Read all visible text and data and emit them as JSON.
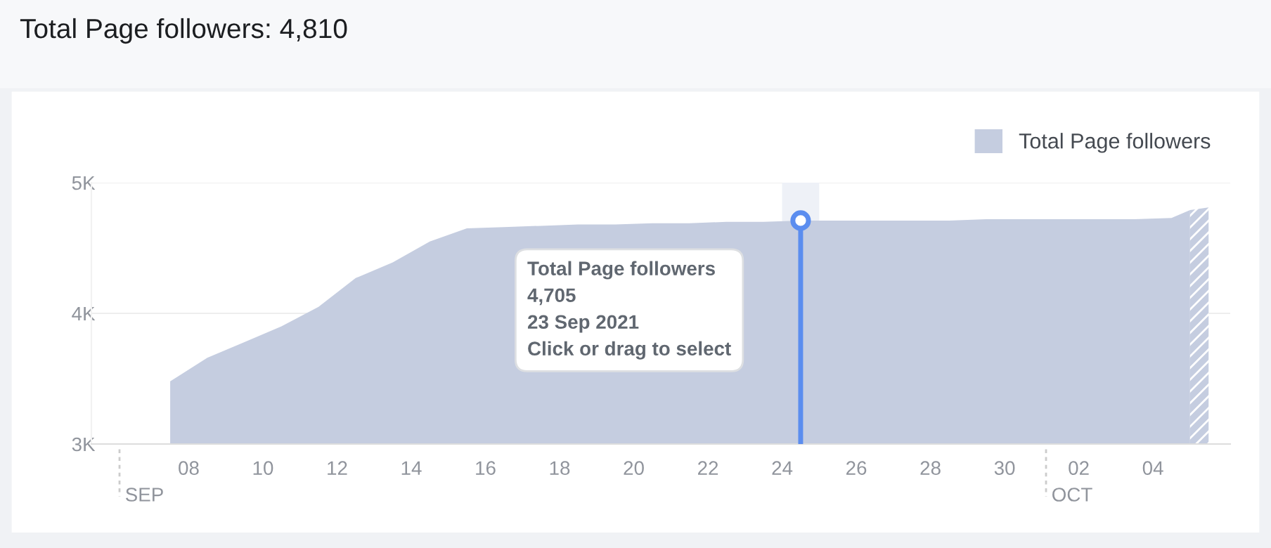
{
  "chart_data": {
    "type": "area",
    "title": "Total Page followers: 4,810",
    "x": [
      "2021-09-07T12:00",
      "2021-09-08T12:00",
      "2021-09-09T12:00",
      "2021-09-10T12:00",
      "2021-09-11T12:00",
      "2021-09-12T12:00",
      "2021-09-13T12:00",
      "2021-09-14T12:00",
      "2021-09-15T12:00",
      "2021-09-16T12:00",
      "2021-09-17T12:00",
      "2021-09-18T12:00",
      "2021-09-19T12:00",
      "2021-09-20T12:00",
      "2021-09-21T12:00",
      "2021-09-22T12:00",
      "2021-09-23T12:00",
      "2021-09-24T12:00",
      "2021-09-25T12:00",
      "2021-09-26T12:00",
      "2021-09-27T12:00",
      "2021-09-28T12:00",
      "2021-09-29T12:00",
      "2021-09-30T12:00",
      "2021-10-01T12:00",
      "2021-10-02T12:00",
      "2021-10-03T12:00",
      "2021-10-04T12:00",
      "2021-10-05T00:00"
    ],
    "series": [
      {
        "name": "Total Page followers",
        "color": "#c5cde0",
        "values": [
          3480,
          3660,
          3780,
          3900,
          4050,
          4270,
          4390,
          4550,
          4650,
          4660,
          4670,
          4680,
          4680,
          4690,
          4690,
          4700,
          4700,
          4710,
          4710,
          4710,
          4710,
          4710,
          4720,
          4720,
          4720,
          4720,
          4720,
          4730,
          4790
        ]
      },
      {
        "color": "#c5cde0",
        "x": [
          "2021-10-05T00:00",
          "2021-10-05T12:00"
        ],
        "values": [
          4790,
          4810
        ]
      }
    ],
    "xlim": [
      "2021-09-05T09:00",
      "2021-10-06T02:00"
    ],
    "xticks": [
      {
        "value": "2021-09-08",
        "label": "08"
      },
      {
        "value": "2021-09-10",
        "label": "10"
      },
      {
        "value": "2021-09-12",
        "label": "12"
      },
      {
        "value": "2021-09-14",
        "label": "14"
      },
      {
        "value": "2021-09-16",
        "label": "16"
      },
      {
        "value": "2021-09-18",
        "label": "18"
      },
      {
        "value": "2021-09-20",
        "label": "20"
      },
      {
        "value": "2021-09-22",
        "label": "22"
      },
      {
        "value": "2021-09-24",
        "label": "24"
      },
      {
        "value": "2021-09-26",
        "label": "26"
      },
      {
        "value": "2021-09-28",
        "label": "28"
      },
      {
        "value": "2021-09-30",
        "label": "30"
      },
      {
        "value": "2021-10-02",
        "label": "02"
      },
      {
        "value": "2021-10-04",
        "label": "04"
      }
    ],
    "ylim": [
      3000,
      5000
    ],
    "yticks": [
      {
        "value": 3000,
        "label": "3K"
      },
      {
        "value": 4000,
        "label": "4K"
      },
      {
        "value": 5000,
        "label": "5K"
      }
    ],
    "grid": "y",
    "legend": "top right",
    "bands": [
      {
        "axis": "x",
        "from": "2021-09-24T00:00",
        "to": "2021-09-25T00:00",
        "color": "#eef1f7"
      }
    ],
    "ref_lines": [
      {
        "axis": "x",
        "value": "2021-09-24T12:00",
        "color": "#5b8def"
      }
    ],
    "annotations": [
      "Total Page followers\n4,705\n23 Sep 2021\nClick or drag to select",
      "SEP",
      "OCT"
    ]
  }
}
